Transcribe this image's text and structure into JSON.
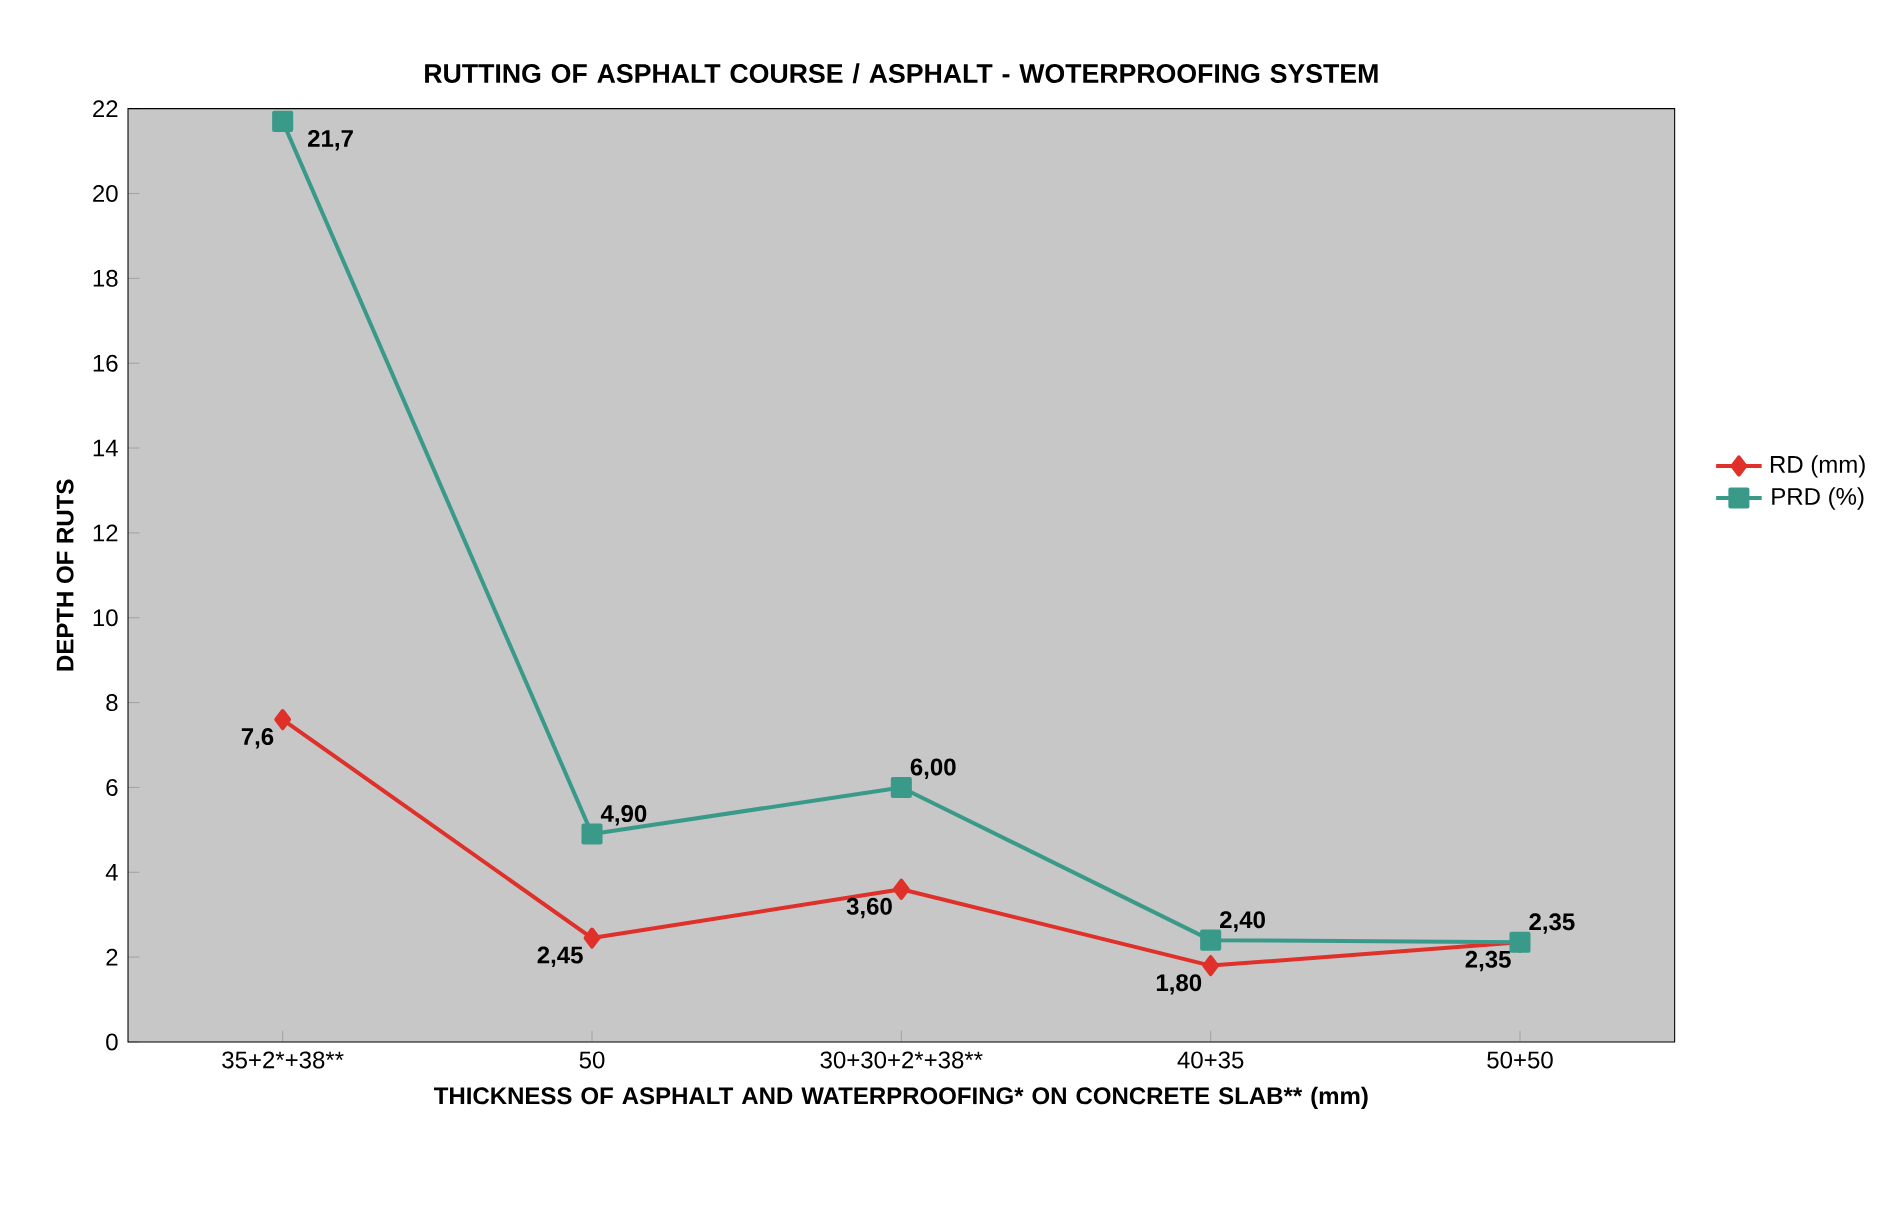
{
  "chart_data": {
    "type": "line",
    "title": "RUTTING OF ASPHALT COURSE / ASPHALT - WOTERPROOFING SYSTEM",
    "xlabel": "THICKNESS OF ASPHALT AND WATERPROOFING* ON CONCRETE SLAB** (mm)",
    "ylabel": "DEPTH OF RUTS",
    "categories": [
      "35+2*+38**",
      "50",
      "30+30+2*+38**",
      "40+35",
      "50+50"
    ],
    "series": [
      {
        "name": "RD (mm)",
        "color": "#e0302a",
        "marker": "diamond",
        "values": [
          7.6,
          2.45,
          3.6,
          1.8,
          2.35
        ],
        "value_labels": [
          "7,6",
          "2,45",
          "3,60",
          "1,80",
          "2,35"
        ]
      },
      {
        "name": "PRD (%)",
        "color": "#3a9a8a",
        "marker": "square",
        "values": [
          21.7,
          4.9,
          6.0,
          2.4,
          2.35
        ],
        "value_labels": [
          "21,7",
          "4,90",
          "6,00",
          "2,40",
          "2,35"
        ]
      }
    ],
    "ylim": [
      0,
      22
    ],
    "yticks": [
      0,
      2,
      4,
      6,
      8,
      10,
      12,
      14,
      16,
      18,
      20,
      22
    ],
    "grid": false,
    "legend": "right",
    "line_style": "solid"
  }
}
